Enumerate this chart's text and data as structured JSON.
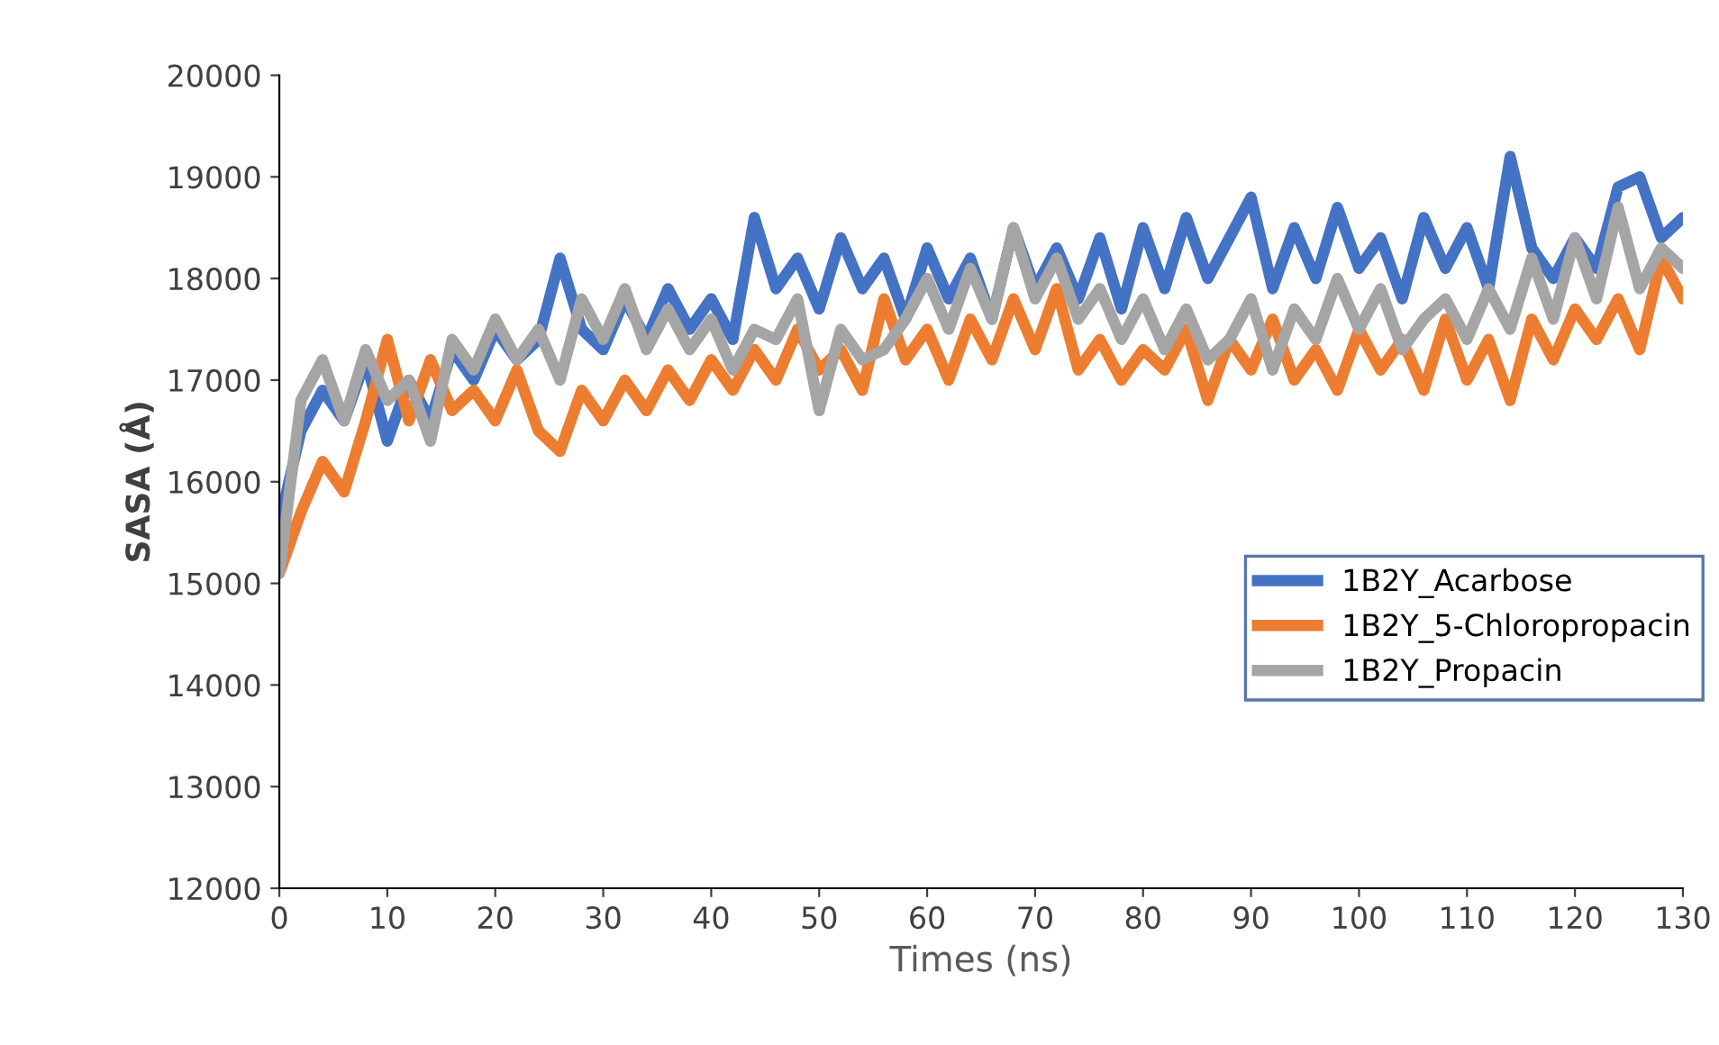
{
  "chart_data": {
    "type": "line",
    "xlabel": "Times (ns)",
    "ylabel": "SASA (Å)",
    "x": [
      0,
      2,
      4,
      6,
      8,
      10,
      12,
      14,
      16,
      18,
      20,
      22,
      24,
      26,
      28,
      30,
      32,
      34,
      36,
      38,
      40,
      42,
      44,
      46,
      48,
      50,
      52,
      54,
      56,
      58,
      60,
      62,
      64,
      66,
      68,
      70,
      72,
      74,
      76,
      78,
      80,
      82,
      84,
      86,
      88,
      90,
      92,
      94,
      96,
      98,
      100,
      102,
      104,
      106,
      108,
      110,
      112,
      114,
      116,
      118,
      120,
      122,
      124,
      126,
      128,
      130
    ],
    "series": [
      {
        "name": "1B2Y_Acarbose",
        "color": "#4472c4",
        "values": [
          15600,
          16500,
          16900,
          16600,
          17200,
          16400,
          17000,
          16600,
          17300,
          17000,
          17500,
          17200,
          17400,
          18200,
          17500,
          17300,
          17800,
          17400,
          17900,
          17500,
          17800,
          17400,
          18600,
          17900,
          18200,
          17700,
          18400,
          17900,
          18200,
          17600,
          18300,
          17800,
          18200,
          17600,
          18500,
          17900,
          18300,
          17800,
          18400,
          17700,
          18500,
          17900,
          18600,
          18000,
          18400,
          18800,
          17900,
          18500,
          18000,
          18700,
          18100,
          18400,
          17800,
          18600,
          18100,
          18500,
          17900,
          19200,
          18300,
          18000,
          18400,
          18100,
          18900,
          19000,
          18400,
          18600
        ]
      },
      {
        "name": "1B2Y_5-Chloropropacin",
        "color": "#ed7d31",
        "values": [
          15100,
          15700,
          16200,
          15900,
          16600,
          17400,
          16600,
          17200,
          16700,
          16900,
          16600,
          17100,
          16500,
          16300,
          16900,
          16600,
          17000,
          16700,
          17100,
          16800,
          17200,
          16900,
          17300,
          17000,
          17500,
          17100,
          17300,
          16900,
          17800,
          17200,
          17500,
          17000,
          17600,
          17200,
          17800,
          17300,
          17900,
          17100,
          17400,
          17000,
          17300,
          17100,
          17500,
          16800,
          17400,
          17100,
          17600,
          17000,
          17300,
          16900,
          17500,
          17100,
          17400,
          16900,
          17600,
          17000,
          17400,
          16800,
          17600,
          17200,
          17700,
          17400,
          17800,
          17300,
          18200,
          17800
        ]
      },
      {
        "name": "1B2Y_Propacin",
        "color": "#a5a5a5",
        "values": [
          15100,
          16800,
          17200,
          16600,
          17300,
          16800,
          17000,
          16400,
          17400,
          17100,
          17600,
          17200,
          17500,
          17000,
          17800,
          17400,
          17900,
          17300,
          17700,
          17300,
          17600,
          17100,
          17500,
          17400,
          17800,
          16700,
          17500,
          17200,
          17300,
          17600,
          18000,
          17500,
          18100,
          17600,
          18500,
          17800,
          18200,
          17600,
          17900,
          17400,
          17800,
          17300,
          17700,
          17200,
          17400,
          17800,
          17100,
          17700,
          17400,
          18000,
          17500,
          17900,
          17300,
          17600,
          17800,
          17400,
          17900,
          17500,
          18200,
          17600,
          18400,
          17800,
          18700,
          17900,
          18300,
          18100
        ]
      }
    ],
    "xlim": [
      0,
      130
    ],
    "xticks": [
      0,
      10,
      20,
      30,
      40,
      50,
      60,
      70,
      80,
      90,
      100,
      110,
      120,
      130
    ],
    "ylim": [
      12000,
      20000
    ],
    "yticks": [
      12000,
      13000,
      14000,
      15000,
      16000,
      17000,
      18000,
      19000,
      20000
    ],
    "grid": false,
    "legend": "right",
    "line_style": "solid"
  }
}
